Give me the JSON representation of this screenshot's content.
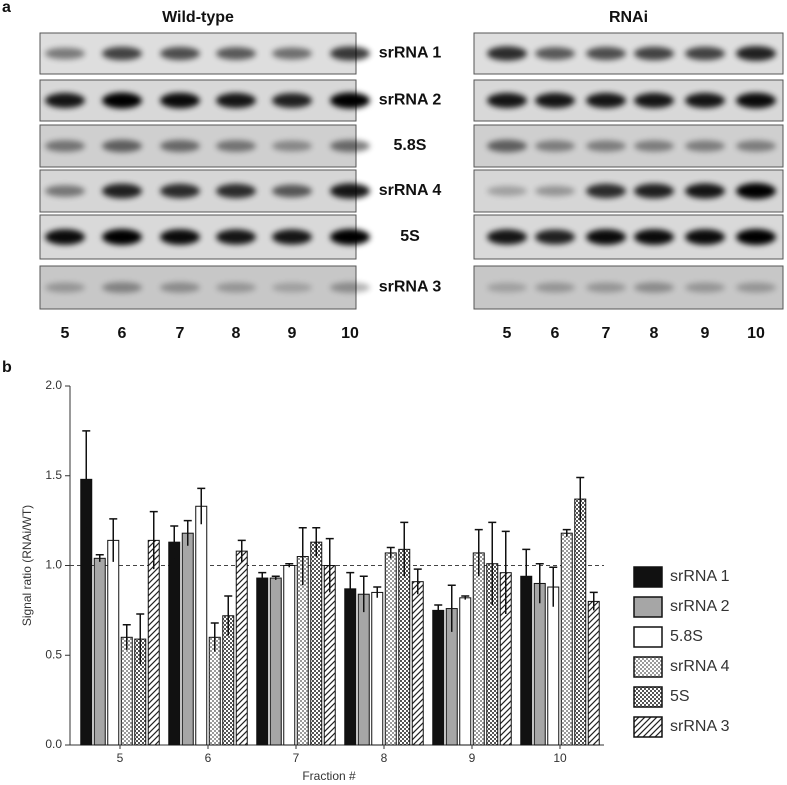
{
  "panel_a": {
    "label": "a",
    "groups": [
      {
        "title": "Wild-type",
        "lanes": [
          "5",
          "6",
          "7",
          "8",
          "9",
          "10"
        ]
      },
      {
        "title": "RNAi",
        "lanes": [
          "5",
          "6",
          "7",
          "8",
          "9",
          "10"
        ]
      }
    ],
    "rows": [
      "srRNA 1",
      "srRNA 2",
      "5.8S",
      "srRNA 4",
      "5S",
      "srRNA 3"
    ]
  },
  "chart_data": {
    "type": "bar",
    "panel_label": "b",
    "y_label": "Signal ratio (RNAi/WT)",
    "x_label": "Fraction #",
    "categories": [
      "5",
      "6",
      "7",
      "8",
      "9",
      "10"
    ],
    "ylim": [
      0,
      2
    ],
    "yticks": [
      {
        "value": 0,
        "label": "0.0"
      },
      0.5,
      {
        "value": 1,
        "label": "1.0"
      },
      1.5,
      {
        "value": 2,
        "label": "2.0"
      }
    ],
    "reference_line": 1,
    "series": [
      {
        "name": "srRNA 1",
        "color": "#111111",
        "pattern": "solid",
        "values": [
          1.48,
          1.13,
          0.93,
          0.87,
          0.75,
          0.94
        ],
        "errors": [
          0.27,
          0.09,
          0.03,
          0.09,
          0.03,
          0.15
        ]
      },
      {
        "name": "srRNA 2",
        "color": "#a6a6a6",
        "pattern": "solid",
        "values": [
          1.04,
          1.18,
          0.93,
          0.84,
          0.76,
          0.9
        ],
        "errors": [
          0.02,
          0.07,
          0.01,
          0.1,
          0.13,
          0.11
        ]
      },
      {
        "name": "5.8S",
        "color": "#ffffff",
        "pattern": "solid",
        "values": [
          1.14,
          1.33,
          1.0,
          0.85,
          0.82,
          0.88
        ],
        "errors": [
          0.12,
          0.1,
          0.01,
          0.03,
          0.01,
          0.11
        ]
      },
      {
        "name": "srRNA 4",
        "color": "#9a9a9a",
        "pattern": "checker",
        "values": [
          0.6,
          0.6,
          1.05,
          1.07,
          1.07,
          1.18
        ],
        "errors": [
          0.07,
          0.08,
          0.16,
          0.03,
          0.13,
          0.02
        ]
      },
      {
        "name": "5S",
        "color": "#555555",
        "pattern": "checker",
        "values": [
          0.59,
          0.72,
          1.13,
          1.09,
          1.01,
          1.37
        ],
        "errors": [
          0.14,
          0.11,
          0.08,
          0.15,
          0.23,
          0.12
        ]
      },
      {
        "name": "srRNA 3",
        "color": "#222222",
        "pattern": "diagonal",
        "values": [
          1.14,
          1.08,
          1.0,
          0.91,
          0.96,
          0.8
        ],
        "errors": [
          0.16,
          0.06,
          0.15,
          0.07,
          0.23,
          0.05
        ]
      }
    ]
  }
}
